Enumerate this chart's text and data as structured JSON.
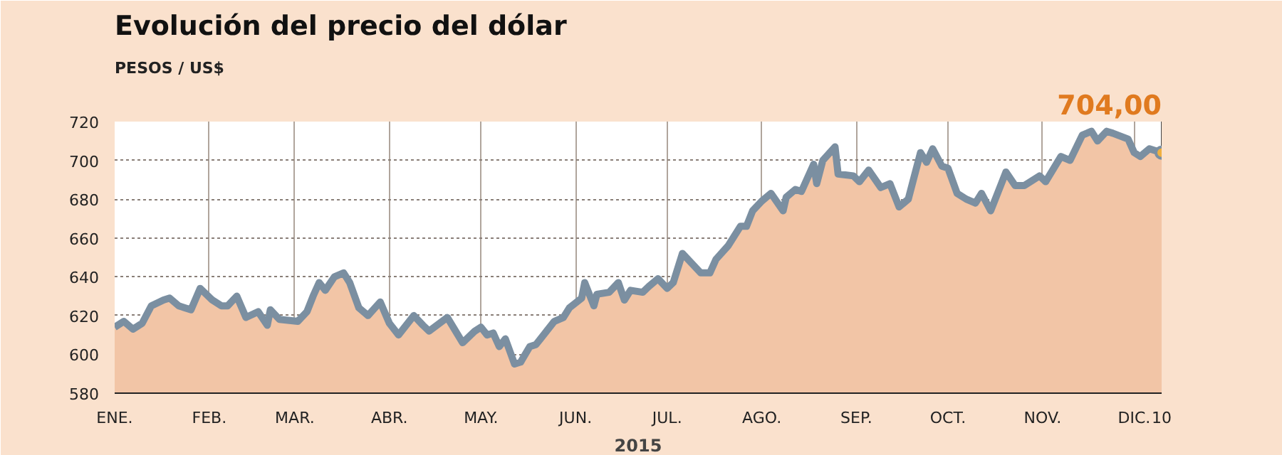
{
  "chart_data": {
    "type": "area",
    "title": "Evolución del precio del dólar",
    "subtitle": "PESOS / US$",
    "xlabel": "2015",
    "x": [
      "2015-01-01",
      "2015-01-04",
      "2015-01-07",
      "2015-01-10",
      "2015-01-13",
      "2015-01-17",
      "2015-01-19",
      "2015-01-22",
      "2015-01-26",
      "2015-01-29",
      "2015-02-02",
      "2015-02-05",
      "2015-02-07",
      "2015-02-10",
      "2015-02-13",
      "2015-02-17",
      "2015-02-20",
      "2015-02-21",
      "2015-02-24",
      "2015-03-02",
      "2015-03-05",
      "2015-03-07",
      "2015-03-09",
      "2015-03-11",
      "2015-03-14",
      "2015-03-17",
      "2015-03-19",
      "2015-03-22",
      "2015-03-25",
      "2015-03-29",
      "2015-04-01",
      "2015-04-04",
      "2015-04-09",
      "2015-04-12",
      "2015-04-14",
      "2015-04-20",
      "2015-04-25",
      "2015-04-29",
      "2015-05-01",
      "2015-05-03",
      "2015-05-05",
      "2015-05-07",
      "2015-05-09",
      "2015-05-12",
      "2015-05-14",
      "2015-05-17",
      "2015-05-19",
      "2015-05-25",
      "2015-05-28",
      "2015-05-30",
      "2015-06-03",
      "2015-06-04",
      "2015-06-07",
      "2015-06-08",
      "2015-06-12",
      "2015-06-15",
      "2015-06-17",
      "2015-06-19",
      "2015-06-23",
      "2015-06-25",
      "2015-06-28",
      "2015-07-01",
      "2015-07-03",
      "2015-07-06",
      "2015-07-09",
      "2015-07-12",
      "2015-07-15",
      "2015-07-17",
      "2015-07-21",
      "2015-07-25",
      "2015-07-27",
      "2015-07-29",
      "2015-08-01",
      "2015-08-04",
      "2015-08-08",
      "2015-08-09",
      "2015-08-12",
      "2015-08-14",
      "2015-08-18",
      "2015-08-19",
      "2015-08-21",
      "2015-08-25",
      "2015-08-26",
      "2015-08-31",
      "2015-09-02",
      "2015-09-05",
      "2015-09-09",
      "2015-09-12",
      "2015-09-15",
      "2015-09-18",
      "2015-09-22",
      "2015-09-24",
      "2015-09-26",
      "2015-09-29",
      "2015-10-01",
      "2015-10-04",
      "2015-10-07",
      "2015-10-10",
      "2015-10-12",
      "2015-10-15",
      "2015-10-20",
      "2015-10-23",
      "2015-10-26",
      "2015-10-31",
      "2015-11-02",
      "2015-11-07",
      "2015-11-10",
      "2015-11-14",
      "2015-11-17",
      "2015-11-19",
      "2015-11-22",
      "2015-11-24",
      "2015-11-29",
      "2015-12-01",
      "2015-12-03",
      "2015-12-06",
      "2015-12-10"
    ],
    "series": [
      {
        "color": "#7b8fa1",
        "values": [
          614,
          617,
          613,
          616,
          625,
          628,
          629,
          625,
          623,
          634,
          628,
          625,
          625,
          630,
          619,
          622,
          615,
          623,
          618,
          617,
          622,
          630,
          637,
          633,
          640,
          642,
          637,
          624,
          620,
          627,
          616,
          610,
          620,
          615,
          612,
          619,
          606,
          612,
          614,
          610,
          611,
          604,
          608,
          595,
          596,
          604,
          605,
          617,
          619,
          624,
          629,
          637,
          625,
          631,
          632,
          637,
          628,
          633,
          632,
          635,
          639,
          634,
          637,
          652,
          647,
          642,
          642,
          649,
          656,
          666,
          666,
          674,
          679,
          683,
          674,
          681,
          685,
          684,
          698,
          688,
          700,
          707,
          693,
          692,
          689,
          695,
          686,
          688,
          676,
          680,
          704,
          699,
          706,
          697,
          696,
          683,
          680,
          678,
          683,
          674,
          694,
          687,
          687,
          692,
          689,
          702,
          700,
          713,
          715,
          710,
          715,
          714,
          711,
          704,
          702,
          706,
          704
        ]
      }
    ],
    "xlim": [
      "2015-01-01",
      "2015-12-10"
    ],
    "xticks": [
      {
        "value": "2015-01-01",
        "label": "ENE."
      },
      {
        "value": "2015-02-01",
        "label": "FEB."
      },
      {
        "value": "2015-03-01",
        "label": "MAR."
      },
      {
        "value": "2015-04-01",
        "label": "ABR."
      },
      {
        "value": "2015-05-01",
        "label": "MAY."
      },
      {
        "value": "2015-06-01",
        "label": "JUN."
      },
      {
        "value": "2015-07-01",
        "label": "JUL."
      },
      {
        "value": "2015-08-01",
        "label": "AGO."
      },
      {
        "value": "2015-09-01",
        "label": "SEP."
      },
      {
        "value": "2015-10-01",
        "label": "OCT."
      },
      {
        "value": "2015-11-01",
        "label": "NOV."
      },
      {
        "value": "2015-12-01",
        "label": "DIC."
      },
      {
        "value": "2015-12-10",
        "label": "10"
      }
    ],
    "ylim": [
      580,
      720
    ],
    "yticks": [
      580,
      600,
      620,
      640,
      660,
      680,
      700,
      720
    ],
    "grid": true,
    "annotations": [
      {
        "text": "704,00",
        "x": "2015-12-10",
        "y": 704
      }
    ]
  }
}
